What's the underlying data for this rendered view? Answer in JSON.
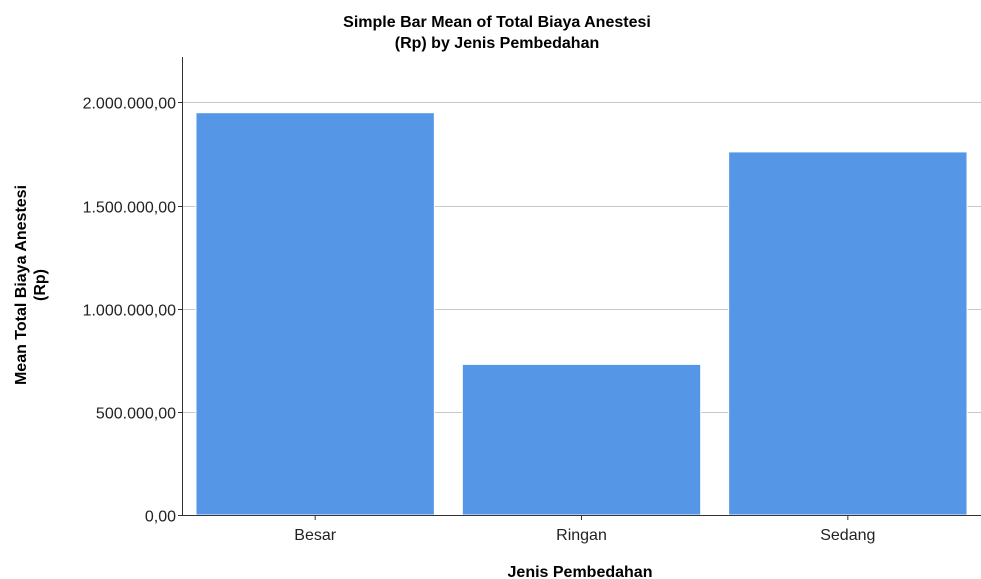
{
  "chart_data": {
    "type": "bar",
    "title_lines": [
      "Simple Bar Mean of Total Biaya Anestesi",
      "(Rp) by Jenis Pembedahan"
    ],
    "xlabel": "Jenis Pembedahan",
    "ylabel_lines": [
      "Mean Total Biaya Anestesi",
      "(Rp)"
    ],
    "categories": [
      "Besar",
      "Ringan",
      "Sedang"
    ],
    "values": [
      1950000,
      730000,
      1760000
    ],
    "ylim": [
      0,
      2220000
    ],
    "yticks": [
      0,
      500000,
      1000000,
      1500000,
      2000000
    ],
    "ytick_labels": [
      "0,00",
      "500.000,00",
      "1.000.000,00",
      "1.500.000,00",
      "2.000.000,00"
    ],
    "grid": true,
    "bar_color": "#5596e6"
  }
}
